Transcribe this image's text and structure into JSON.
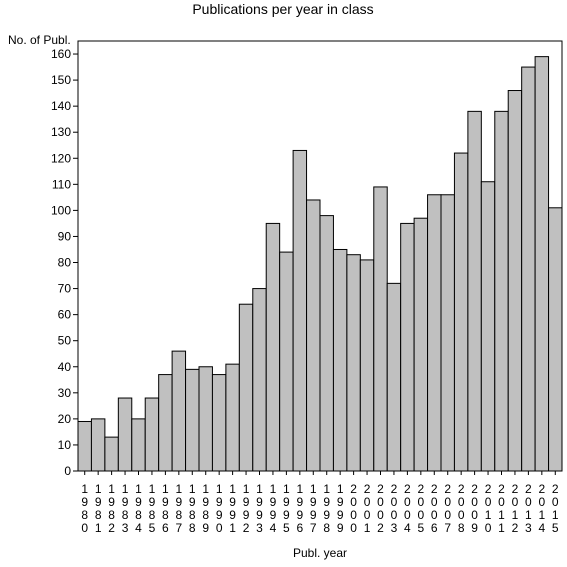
{
  "chart_data": {
    "type": "bar",
    "title": "Publications per year in class",
    "ylabel": "No. of Publ.",
    "xlabel": "Publ. year",
    "ylim": [
      0,
      165
    ],
    "yticks": [
      0,
      10,
      20,
      30,
      40,
      50,
      60,
      70,
      80,
      90,
      100,
      110,
      120,
      130,
      140,
      150,
      160
    ],
    "grid": false,
    "bar_color": "#c0c0c0",
    "categories": [
      "1980",
      "1981",
      "1982",
      "1983",
      "1984",
      "1985",
      "1986",
      "1987",
      "1988",
      "1989",
      "1990",
      "1991",
      "1992",
      "1993",
      "1994",
      "1995",
      "1996",
      "1997",
      "1998",
      "1999",
      "2000",
      "2001",
      "2002",
      "2003",
      "2004",
      "2005",
      "2006",
      "2007",
      "2008",
      "2009",
      "2010",
      "2011",
      "2012",
      "2013",
      "2014",
      "2015"
    ],
    "values": [
      19,
      20,
      13,
      28,
      20,
      28,
      37,
      46,
      39,
      40,
      37,
      41,
      64,
      70,
      95,
      84,
      123,
      104,
      98,
      85,
      83,
      81,
      109,
      72,
      95,
      97,
      106,
      106,
      122,
      138,
      111,
      138,
      146,
      155,
      159,
      101
    ]
  }
}
